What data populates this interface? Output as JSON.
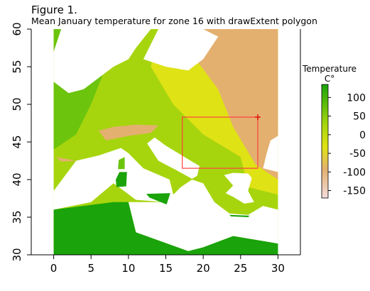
{
  "figure_label": "Figure 1.",
  "colors": {
    "sea": "#ffffff",
    "warm": "#1aa30a",
    "mild": "#a6d50e",
    "cool": "#dfe214",
    "cold": "#e4b070",
    "very_cold": "#f2dcdc",
    "extent": "#ff4040"
  },
  "chart_data": {
    "type": "heatmap",
    "title": "Mean January temperature for zone 16 with drawExtent polygon",
    "xlabel": "",
    "ylabel": "",
    "xlim": [
      -3,
      33
    ],
    "ylim": [
      30,
      60
    ],
    "xticks": [
      0,
      5,
      10,
      15,
      20,
      25,
      30
    ],
    "yticks": [
      30,
      35,
      40,
      45,
      50,
      55,
      60
    ],
    "raster_extent": {
      "x": [
        0,
        30
      ],
      "y": [
        30,
        60
      ]
    },
    "legend": {
      "title_line1": "Temperature",
      "title_line2": "C°",
      "range": [
        -170,
        135
      ],
      "ticks": [
        100,
        50,
        0,
        -50,
        -100,
        -150
      ],
      "placement": "right"
    },
    "extent_polygon": {
      "x": [
        17.2,
        27.3
      ],
      "y": [
        41.5,
        48.3
      ]
    },
    "marker": {
      "x": 27.3,
      "y": 48.3
    }
  }
}
